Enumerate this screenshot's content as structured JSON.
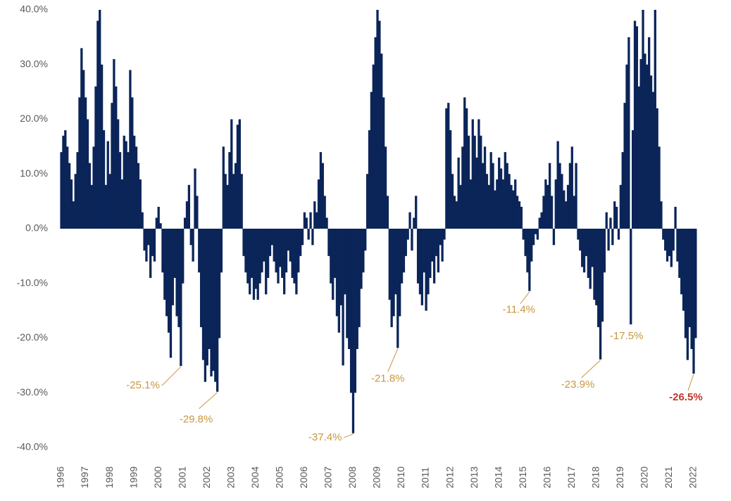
{
  "chart_data": {
    "type": "bar",
    "color": "#0b2559",
    "ylim": [
      -40,
      40
    ],
    "yticks": [
      {
        "value": -40,
        "label": "-40.0%"
      },
      {
        "value": -30,
        "label": "-30.0%"
      },
      {
        "value": -20,
        "label": "-20.0%"
      },
      {
        "value": -10,
        "label": "-10.0%"
      },
      {
        "value": 0,
        "label": "0.0%"
      },
      {
        "value": 10,
        "label": "10.0%"
      },
      {
        "value": 20,
        "label": "20.0%"
      },
      {
        "value": 30,
        "label": "30.0%"
      },
      {
        "value": 40,
        "label": "40.0%"
      }
    ],
    "categories": [
      "1996",
      null,
      null,
      null,
      null,
      null,
      null,
      null,
      null,
      null,
      null,
      null,
      "1997",
      null,
      null,
      null,
      null,
      null,
      null,
      null,
      null,
      null,
      null,
      null,
      "1998",
      null,
      null,
      null,
      null,
      null,
      null,
      null,
      null,
      null,
      null,
      null,
      "1999",
      null,
      null,
      null,
      null,
      null,
      null,
      null,
      null,
      null,
      null,
      null,
      "2000",
      null,
      null,
      null,
      null,
      null,
      null,
      null,
      null,
      null,
      null,
      null,
      "2001",
      null,
      null,
      null,
      null,
      null,
      null,
      null,
      null,
      null,
      null,
      null,
      "2002",
      null,
      null,
      null,
      null,
      null,
      null,
      null,
      null,
      null,
      null,
      null,
      "2003",
      null,
      null,
      null,
      null,
      null,
      null,
      null,
      null,
      null,
      null,
      null,
      "2004",
      null,
      null,
      null,
      null,
      null,
      null,
      null,
      null,
      null,
      null,
      null,
      "2005",
      null,
      null,
      null,
      null,
      null,
      null,
      null,
      null,
      null,
      null,
      null,
      "2006",
      null,
      null,
      null,
      null,
      null,
      null,
      null,
      null,
      null,
      null,
      null,
      "2007",
      null,
      null,
      null,
      null,
      null,
      null,
      null,
      null,
      null,
      null,
      null,
      "2008",
      null,
      null,
      null,
      null,
      null,
      null,
      null,
      null,
      null,
      null,
      null,
      "2009",
      null,
      null,
      null,
      null,
      null,
      null,
      null,
      null,
      null,
      null,
      null,
      "2010",
      null,
      null,
      null,
      null,
      null,
      null,
      null,
      null,
      null,
      null,
      null,
      "2011",
      null,
      null,
      null,
      null,
      null,
      null,
      null,
      null,
      null,
      null,
      null,
      "2012",
      null,
      null,
      null,
      null,
      null,
      null,
      null,
      null,
      null,
      null,
      null,
      "2013",
      null,
      null,
      null,
      null,
      null,
      null,
      null,
      null,
      null,
      null,
      null,
      "2014",
      null,
      null,
      null,
      null,
      null,
      null,
      null,
      null,
      null,
      null,
      null,
      "2015",
      null,
      null,
      null,
      null,
      null,
      null,
      null,
      null,
      null,
      null,
      null,
      "2016",
      null,
      null,
      null,
      null,
      null,
      null,
      null,
      null,
      null,
      null,
      null,
      "2017",
      null,
      null,
      null,
      null,
      null,
      null,
      null,
      null,
      null,
      null,
      null,
      "2018",
      null,
      null,
      null,
      null,
      null,
      null,
      null,
      null,
      null,
      null,
      null,
      "2019",
      null,
      null,
      null,
      null,
      null,
      null,
      null,
      null,
      null,
      null,
      null,
      "2020",
      null,
      null,
      null,
      null,
      null,
      null,
      null,
      null,
      null,
      null,
      null,
      "2021",
      null,
      null,
      null,
      null,
      null,
      null,
      null,
      null,
      null,
      null,
      null,
      "2022",
      null
    ],
    "values": [
      14,
      17,
      18,
      15,
      12,
      9,
      5,
      10,
      14,
      24,
      33,
      29,
      24,
      20,
      12,
      8,
      15,
      26,
      38,
      40,
      30,
      18,
      8,
      16,
      10,
      23,
      31,
      26,
      20,
      14,
      9,
      17,
      16,
      14,
      29,
      24,
      17,
      15,
      12,
      9,
      3,
      -4,
      -6,
      -3,
      -9,
      -5,
      -6,
      2,
      4,
      1,
      -8,
      -13,
      -16,
      -19,
      -23.6,
      -14,
      -9,
      -16,
      -18,
      -25.1,
      -10,
      2,
      5,
      8,
      -3,
      -6,
      11,
      6,
      -8,
      -18,
      -24,
      -28,
      -25,
      -22,
      -27,
      -26,
      -28,
      -29.8,
      -20,
      -8,
      15,
      10,
      8,
      14,
      20,
      10,
      12,
      19,
      20,
      10,
      -5,
      -8,
      -10,
      -12,
      -9,
      -13,
      -11,
      -13,
      -10,
      -8,
      -6,
      -12,
      -9,
      -5,
      -3,
      -6,
      -8,
      -10,
      -7,
      -9,
      -12,
      -8,
      -4,
      -6,
      -9,
      -10,
      -12,
      -8,
      -5,
      -3,
      3,
      2,
      -2,
      3,
      -3,
      5,
      3,
      9,
      14,
      12,
      6,
      2,
      -5,
      -10,
      -13,
      -9,
      -16,
      -19,
      -14,
      -25,
      -12,
      -20,
      -22,
      -30,
      -37.4,
      -30,
      -22,
      -18,
      -11,
      -8,
      -4,
      10,
      18,
      25,
      30,
      35,
      40,
      38,
      32,
      24,
      15,
      6,
      -13,
      -18,
      -16,
      -12,
      -21.8,
      -16,
      -10,
      -8,
      -5,
      -2,
      3,
      -4,
      2,
      6,
      -10,
      -12,
      -14,
      -8,
      -15,
      -12,
      -9,
      -6,
      -10,
      -5,
      -8,
      -3,
      -6,
      -2,
      22,
      23,
      18,
      10,
      6,
      5,
      13,
      8,
      15,
      24,
      22,
      17,
      9,
      20,
      17,
      13,
      20,
      17,
      12,
      15,
      10,
      8,
      14,
      12,
      7,
      9,
      13,
      11,
      9,
      14,
      12,
      10,
      8,
      7,
      9,
      6,
      5,
      4,
      -2,
      -5,
      -8,
      -11.4,
      -6,
      -3,
      -1,
      -2,
      2,
      3,
      6,
      9,
      8,
      12,
      6,
      -3,
      9,
      16,
      12,
      10,
      7,
      5,
      8,
      12,
      15,
      6,
      12,
      -2,
      -4,
      -7,
      -8,
      -5,
      -9,
      -11,
      -7,
      -13,
      -14,
      -18,
      -23.9,
      -17,
      -8,
      3,
      -4,
      2,
      -3,
      5,
      4,
      -2,
      8,
      14,
      23,
      30,
      35,
      -17.5,
      18,
      38,
      37,
      26,
      31,
      40,
      32,
      30,
      35,
      28,
      25,
      40,
      22,
      15,
      5,
      -2,
      -4,
      -6,
      -5,
      -7,
      -4,
      4,
      -6,
      -9,
      -12,
      -15,
      -20,
      -24,
      -18,
      -22,
      -26.5,
      -20
    ],
    "value_labels": [
      null,
      null,
      null,
      null,
      null,
      null,
      null,
      null,
      null,
      null,
      null,
      null,
      null,
      null,
      null,
      null,
      null,
      null,
      null,
      null,
      null,
      null,
      null,
      null,
      null,
      null,
      null,
      null,
      null,
      null,
      null,
      null,
      null,
      null,
      null,
      null,
      null,
      null,
      null,
      null,
      null,
      null,
      null,
      null,
      null,
      null,
      null,
      null,
      null,
      null,
      null,
      null,
      null,
      null,
      null,
      null,
      null,
      null,
      null,
      "-25.1%",
      null,
      null,
      null,
      null,
      null,
      null,
      null,
      null,
      null,
      null,
      null,
      null,
      null,
      null,
      null,
      null,
      null,
      "-29.8%",
      null,
      null,
      null,
      null,
      null,
      null,
      null,
      null,
      null,
      null,
      null,
      null,
      null,
      null,
      null,
      null,
      null,
      null,
      null,
      null,
      null,
      null,
      null,
      null,
      null,
      null,
      null,
      null,
      null,
      null,
      null,
      null,
      null,
      null,
      null,
      null,
      null,
      null,
      null,
      null,
      null,
      null,
      null,
      null,
      null,
      null,
      null,
      null,
      null,
      null,
      null,
      null,
      null,
      null,
      null,
      null,
      null,
      null,
      null,
      null,
      null,
      null,
      null,
      null,
      null,
      null,
      "-37.4%",
      null,
      null,
      null,
      null,
      null,
      null,
      null,
      null,
      null,
      null,
      null,
      null,
      null,
      null,
      null,
      null,
      null,
      null,
      null,
      null,
      null,
      "-21.8%",
      null,
      null,
      null,
      null,
      null,
      null,
      null,
      null,
      null,
      null,
      null,
      null,
      null,
      null,
      null,
      null,
      null,
      null,
      null,
      null,
      null,
      null,
      null,
      null,
      null,
      null,
      null,
      null,
      null,
      null,
      null,
      null,
      null,
      null,
      null,
      null,
      null,
      null,
      null,
      null,
      null,
      null,
      null,
      null,
      null,
      null,
      null,
      null,
      null,
      null,
      null,
      null,
      null,
      null,
      null,
      null,
      null,
      null,
      null,
      null,
      null,
      null,
      null,
      null,
      "-11.4%",
      null,
      null,
      null,
      null,
      null,
      null,
      null,
      null,
      null,
      null,
      null,
      null,
      null,
      null,
      null,
      null,
      null,
      null,
      null,
      null,
      null,
      null,
      null,
      null,
      null,
      null,
      null,
      null,
      null,
      null,
      null,
      null,
      null,
      null,
      "-23.9%",
      null,
      null,
      null,
      null,
      null,
      null,
      null,
      null,
      null,
      null,
      null,
      null,
      null,
      null,
      "-17.5%",
      null,
      null,
      null,
      null,
      null,
      null,
      null,
      null,
      null,
      null,
      null,
      null,
      null,
      null,
      null,
      null,
      null,
      null,
      null,
      null,
      null,
      null,
      null,
      null,
      null,
      null,
      null,
      null,
      null,
      null,
      "-26.5%",
      null
    ]
  }
}
